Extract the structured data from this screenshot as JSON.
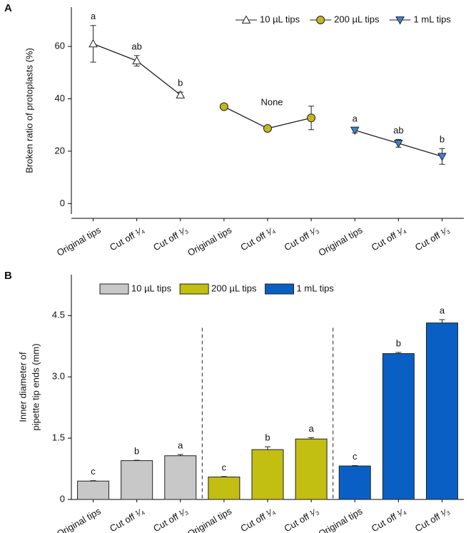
{
  "chart_data": [
    {
      "type": "line",
      "panel": "A",
      "ylabel": [
        "Broken ratio of protoplasts (%)"
      ],
      "categories": [
        "Original tips",
        "Cut off ¹⁄₄",
        "Cut off ¹⁄₃",
        "Original tips",
        "Cut off ¹⁄₄",
        "Cut off ¹⁄₃",
        "Original tips",
        "Cut off ¹⁄₄",
        "Cut off ¹⁄₃"
      ],
      "ylim": [
        -4,
        75
      ],
      "yticks": [
        0,
        20,
        40,
        60
      ],
      "series": [
        {
          "name": "10 µL tips",
          "color": "#ffffff",
          "marker": "triangle-up",
          "values": [
            61,
            54.5,
            41.5,
            null,
            null,
            null,
            null,
            null,
            null
          ],
          "errors": [
            7,
            2,
            1,
            null,
            null,
            null,
            null,
            null,
            null
          ],
          "letters": [
            "a",
            "ab",
            "b",
            null,
            null,
            null,
            null,
            null,
            null
          ]
        },
        {
          "name": "200 µL tips",
          "color": "#c2b622",
          "marker": "circle",
          "values": [
            null,
            null,
            null,
            37,
            28.7,
            32.7,
            null,
            null,
            null
          ],
          "errors": [
            null,
            null,
            null,
            0.5,
            0.8,
            4.5,
            null,
            null,
            null
          ]
        },
        {
          "name": "1 mL tips",
          "color": "#3b82d6",
          "marker": "triangle-down",
          "values": [
            null,
            null,
            null,
            null,
            null,
            null,
            28,
            23,
            18
          ],
          "errors": [
            null,
            null,
            null,
            null,
            null,
            null,
            1,
            1.5,
            3
          ],
          "letters": [
            null,
            null,
            null,
            null,
            null,
            null,
            "a",
            "ab",
            "b"
          ]
        }
      ],
      "annotation": "None",
      "legend": "top-right"
    },
    {
      "type": "bar",
      "panel": "B",
      "ylabel": [
        "Inner diameter of",
        "pipette tip ends (mm)"
      ],
      "categories": [
        "Original tips",
        "Cut off ¹⁄₄",
        "Cut off ¹⁄₃",
        "Original tips",
        "Cut off ¹⁄₄",
        "Cut off ¹⁄₃",
        "Original tips",
        "Cut off ¹⁄₄",
        "Cut off ¹⁄₃"
      ],
      "ylim": [
        0,
        5.5
      ],
      "yticks": [
        0,
        1.5,
        {
          "value": 3,
          "label": "3.0"
        },
        4.5
      ],
      "series": [
        {
          "name": "10 µL tips",
          "color": "#c8c8c8",
          "values": [
            0.45,
            0.95,
            1.07,
            null,
            null,
            null,
            null,
            null,
            null
          ],
          "errors": [
            0.01,
            0.01,
            0.03,
            null,
            null,
            null,
            null,
            null,
            null
          ],
          "letters": [
            "c",
            "b",
            "a",
            null,
            null,
            null,
            null,
            null,
            null
          ]
        },
        {
          "name": "200 µL tips",
          "color": "#c2be12",
          "values": [
            null,
            null,
            null,
            0.55,
            1.22,
            1.48,
            null,
            null,
            null
          ],
          "errors": [
            null,
            null,
            null,
            0.01,
            0.07,
            0.03,
            null,
            null,
            null
          ],
          "letters": [
            null,
            null,
            null,
            "c",
            "b",
            "a",
            null,
            null,
            null
          ]
        },
        {
          "name": "1 mL tips",
          "color": "#0a5fc4",
          "values": [
            null,
            null,
            null,
            null,
            null,
            null,
            0.82,
            3.57,
            4.32
          ],
          "errors": [
            null,
            null,
            null,
            null,
            null,
            null,
            0.01,
            0.03,
            0.08
          ],
          "letters": [
            null,
            null,
            null,
            null,
            null,
            null,
            "c",
            "b",
            "a"
          ]
        }
      ],
      "legend": "top-left"
    }
  ]
}
